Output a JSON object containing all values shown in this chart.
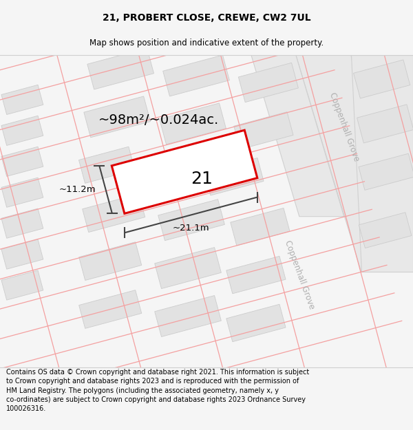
{
  "title_line1": "21, PROBERT CLOSE, CREWE, CW2 7UL",
  "title_line2": "Map shows position and indicative extent of the property.",
  "footer_text": "Contains OS data © Crown copyright and database right 2021. This information is subject to Crown copyright and database rights 2023 and is reproduced with the permission of HM Land Registry. The polygons (including the associated geometry, namely x, y co-ordinates) are subject to Crown copyright and database rights 2023 Ordnance Survey 100026316.",
  "area_label": "~98m²/~0.024ac.",
  "width_label": "~21.1m",
  "height_label": "~11.2m",
  "property_number": "21",
  "bg_color": "#f5f5f5",
  "map_bg": "#ffffff",
  "building_fill": "#e2e2e2",
  "building_stroke": "#cccccc",
  "road_fill": "#e8e8e8",
  "road_stroke": "#d0d0d0",
  "pink_line_color": "#f4a0a0",
  "red_polygon_color": "#dd0000",
  "road_label_color": "#b0b0b0",
  "dim_line_color": "#444444",
  "title_fontsize": 10,
  "subtitle_fontsize": 8.5,
  "footer_fontsize": 7.0,
  "area_fontsize": 14,
  "number_fontsize": 18,
  "dim_fontsize": 9.5,
  "road_label_fontsize": 8.5
}
